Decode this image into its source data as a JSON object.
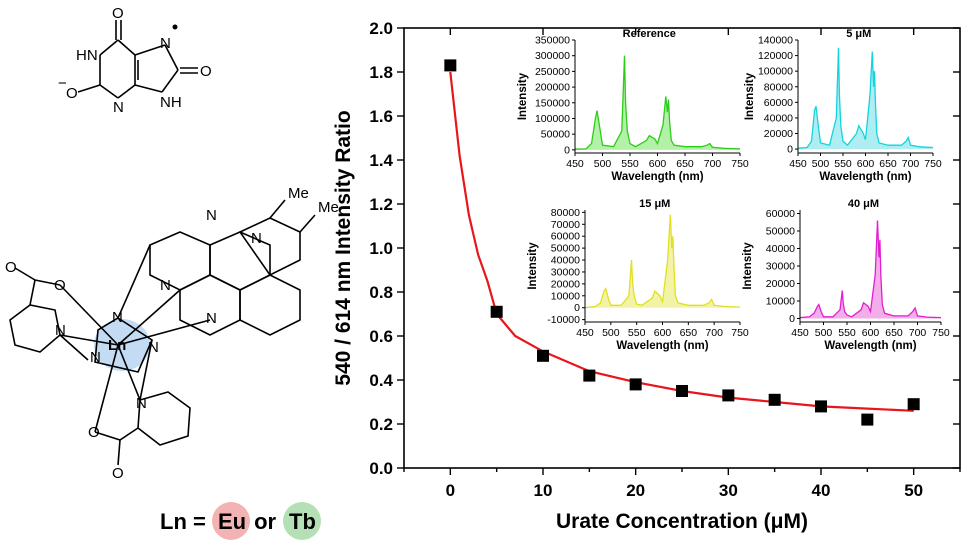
{
  "structure": {
    "urate_labels": {
      "o_top": "O",
      "nh_left": "HN",
      "o_right": "O",
      "o_minus": "O",
      "minus": "−",
      "n_bottom": "N",
      "nh_bottom": "NH",
      "n_radical": "N"
    },
    "complex_labels": {
      "me1": "Me",
      "me2": "Me",
      "n": "N",
      "o": "O",
      "ln": "Ln"
    },
    "legend": {
      "prefix": "Ln = ",
      "eu": "Eu",
      "or": " or ",
      "tb": "Tb"
    },
    "colors": {
      "eu_circle": "#f3b3b3",
      "tb_circle": "#b5dfb5",
      "ln_glow": "#a9cdee"
    }
  },
  "chart_data": {
    "type": "scatter",
    "xlabel": "Urate Concentration (μM)",
    "ylabel": "540 / 614 nm Intensity Ratio",
    "xlim": [
      -5,
      55
    ],
    "ylim": [
      0.0,
      2.0
    ],
    "xticks": [
      "0",
      "10",
      "20",
      "30",
      "40",
      "50"
    ],
    "yticks": [
      "0.0",
      "0.2",
      "0.4",
      "0.6",
      "0.8",
      "1.0",
      "1.2",
      "1.4",
      "1.6",
      "1.8",
      "2.0"
    ],
    "series": [
      {
        "x": [
          0,
          5,
          10,
          15,
          20,
          25,
          30,
          35,
          40,
          45,
          50
        ],
        "y": [
          1.83,
          0.71,
          0.51,
          0.42,
          0.38,
          0.35,
          0.33,
          0.31,
          0.28,
          0.22,
          0.29
        ],
        "marker": "square",
        "color": "#000000"
      }
    ],
    "fit": {
      "x": [
        0,
        1,
        2,
        3,
        4,
        5,
        7,
        10,
        15,
        20,
        25,
        30,
        35,
        40,
        45,
        50
      ],
      "y": [
        1.8,
        1.42,
        1.15,
        0.97,
        0.85,
        0.7,
        0.6,
        0.53,
        0.44,
        0.39,
        0.35,
        0.32,
        0.3,
        0.28,
        0.27,
        0.26
      ],
      "color": "#e8161b"
    },
    "insets": [
      {
        "title": "Reference",
        "color": "#2ecc1a",
        "fill": "#b3f0a8",
        "xticks": [
          "450",
          "500",
          "550",
          "600",
          "650",
          "700",
          "750"
        ],
        "yticks": [
          "0",
          "50000",
          "100000",
          "150000",
          "200000",
          "250000",
          "300000",
          "350000"
        ],
        "xlim": [
          450,
          750
        ],
        "ylim": [
          -10000,
          350000
        ],
        "xlabel": "Wavelength (nm)",
        "ylabel": "Intensity",
        "x": [
          450,
          470,
          480,
          487,
          490,
          495,
          500,
          520,
          535,
          540,
          542,
          545,
          550,
          560,
          580,
          585,
          590,
          595,
          600,
          610,
          615,
          618,
          620,
          622,
          625,
          630,
          650,
          680,
          690,
          695,
          700,
          720,
          750
        ],
        "y": [
          2000,
          3000,
          20000,
          100000,
          125000,
          70000,
          15000,
          10000,
          60000,
          300000,
          150000,
          60000,
          20000,
          10000,
          30000,
          45000,
          40000,
          35000,
          20000,
          80000,
          170000,
          120000,
          160000,
          90000,
          30000,
          15000,
          10000,
          10000,
          15000,
          20000,
          8000,
          5000,
          3000
        ]
      },
      {
        "title": "5 μM",
        "color": "#14d4dc",
        "fill": "#aeeef2",
        "xticks": [
          "450",
          "500",
          "550",
          "600",
          "650",
          "700",
          "750"
        ],
        "yticks": [
          "0",
          "20000",
          "40000",
          "60000",
          "80000",
          "100000",
          "120000",
          "140000"
        ],
        "xlim": [
          450,
          750
        ],
        "ylim": [
          -5000,
          140000
        ],
        "xlabel": "Wavelength (nm)",
        "ylabel": "Intensity",
        "x": [
          450,
          470,
          480,
          487,
          490,
          495,
          500,
          520,
          535,
          540,
          542,
          545,
          550,
          560,
          580,
          585,
          590,
          595,
          600,
          610,
          615,
          618,
          620,
          622,
          625,
          630,
          650,
          680,
          690,
          695,
          700,
          720,
          750
        ],
        "y": [
          1000,
          2000,
          10000,
          50000,
          55000,
          30000,
          8000,
          5000,
          40000,
          130000,
          70000,
          30000,
          10000,
          5000,
          20000,
          30000,
          25000,
          20000,
          12000,
          70000,
          125000,
          80000,
          100000,
          60000,
          20000,
          8000,
          5000,
          5000,
          10000,
          15000,
          5000,
          3000,
          2000
        ]
      },
      {
        "title": "15 μM",
        "color": "#e0e020",
        "fill": "#f3f3a8",
        "xticks": [
          "450",
          "500",
          "550",
          "600",
          "650",
          "700",
          "750"
        ],
        "yticks": [
          "-10000",
          "0",
          "10000",
          "20000",
          "30000",
          "40000",
          "50000",
          "60000",
          "70000",
          "80000"
        ],
        "xlim": [
          450,
          750
        ],
        "ylim": [
          -12000,
          82000
        ],
        "xlabel": "Wavelength (nm)",
        "ylabel": "Intensity",
        "x": [
          450,
          470,
          480,
          487,
          490,
          495,
          500,
          520,
          535,
          540,
          542,
          545,
          550,
          560,
          580,
          585,
          590,
          595,
          600,
          610,
          615,
          618,
          620,
          622,
          625,
          630,
          650,
          680,
          690,
          695,
          700,
          720,
          750
        ],
        "y": [
          0,
          1000,
          4000,
          14000,
          16000,
          8000,
          2000,
          2000,
          10000,
          40000,
          22000,
          10000,
          3000,
          2000,
          8000,
          14000,
          12000,
          10000,
          5000,
          40000,
          78000,
          50000,
          60000,
          35000,
          10000,
          4000,
          2000,
          2000,
          4000,
          7000,
          2000,
          1000,
          500
        ]
      },
      {
        "title": "40 μM",
        "color": "#e020d0",
        "fill": "#f3aeea",
        "xticks": [
          "450",
          "500",
          "550",
          "600",
          "650",
          "700",
          "750"
        ],
        "yticks": [
          "0",
          "10000",
          "20000",
          "30000",
          "40000",
          "50000",
          "60000"
        ],
        "xlim": [
          450,
          750
        ],
        "ylim": [
          -2000,
          62000
        ],
        "xlabel": "Wavelength (nm)",
        "ylabel": "Intensity",
        "x": [
          450,
          470,
          480,
          487,
          490,
          495,
          500,
          520,
          535,
          540,
          542,
          545,
          550,
          560,
          580,
          585,
          590,
          595,
          600,
          610,
          615,
          618,
          620,
          622,
          625,
          630,
          650,
          680,
          690,
          695,
          700,
          720,
          750
        ],
        "y": [
          500,
          1000,
          3000,
          7000,
          8000,
          4000,
          1000,
          1000,
          5000,
          16000,
          9000,
          4000,
          2000,
          1000,
          5000,
          9000,
          8000,
          7000,
          4000,
          25000,
          56000,
          35000,
          45000,
          25000,
          8000,
          3000,
          1500,
          1500,
          4000,
          6000,
          1500,
          800,
          500
        ]
      }
    ]
  }
}
